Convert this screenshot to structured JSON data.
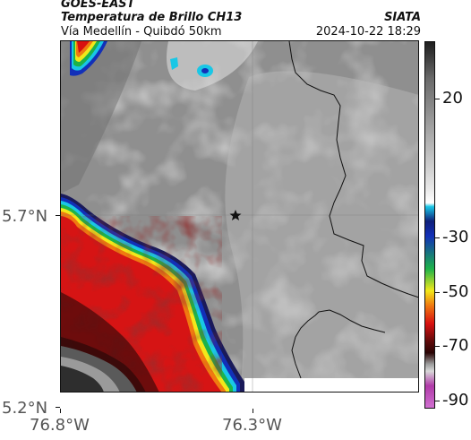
{
  "header": {
    "satellite": "GOES-EAST",
    "product": "Temperatura de Brillo CH13",
    "region": "Vía Medellín - Quibdó 50km",
    "agency": "SIATA",
    "timestamp": "2024-10-22 18:29"
  },
  "axes": {
    "y_ticks": [
      "5.7°N",
      "5.2°N"
    ],
    "x_ticks": [
      "76.8°W",
      "76.3°W"
    ]
  },
  "colorbar": {
    "ticks": [
      "20",
      "-30",
      "-50",
      "-70",
      "-90"
    ],
    "colors": {
      "warm_low": "#1e1e1e",
      "gray_mid": "#bdbdbd",
      "white": "#ffffff",
      "cyan": "#19c7e6",
      "blue": "#1230b8",
      "green": "#1db34a",
      "yellow": "#f2e81a",
      "orange": "#f07a10",
      "red": "#d81010",
      "dark_red": "#5c0a0a",
      "magenta": "#b03aa8"
    }
  },
  "map": {
    "marker_icon": "star-icon",
    "background_gray": "#8f8f8f",
    "cold_cloud_red": "#d61414",
    "cold_cloud_dark": "#4a0a0a",
    "no_data_white": "#ffffff"
  }
}
